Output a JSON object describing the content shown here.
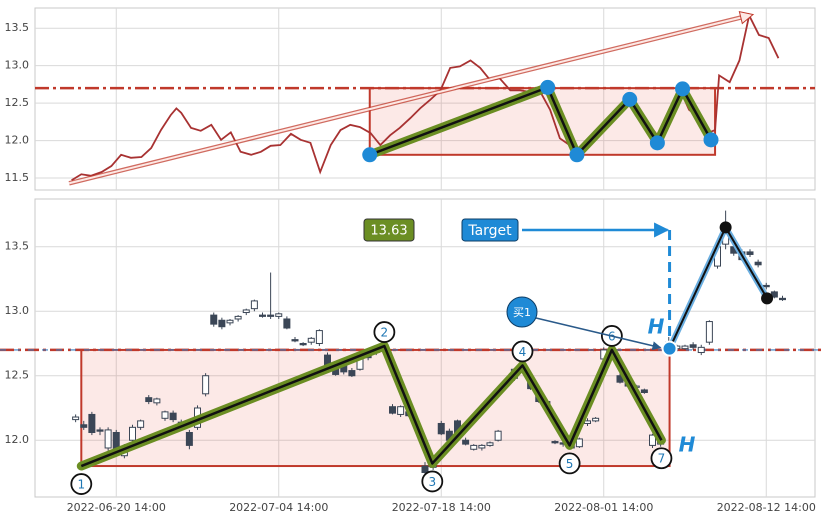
{
  "chart_data": [
    {
      "type": "line",
      "x": [
        4.5,
        5.7,
        6.9,
        8.2,
        9.4,
        10.6,
        11.8,
        13.1,
        14.3,
        15.5,
        16.7,
        17.4,
        18.0,
        19.2,
        20.4,
        21.7,
        22.9,
        24.1,
        25.3,
        26.6,
        27.8,
        29.0,
        30.2,
        31.5,
        32.7,
        33.9,
        35.1,
        36.4,
        37.6,
        38.8,
        40.0,
        41.3,
        42.5,
        43.7,
        44.9,
        46.2,
        47.4,
        48.6,
        49.9,
        51.1,
        52.3,
        53.6,
        54.8,
        56.0,
        57.2,
        58.5,
        59.7,
        60.9,
        62.1,
        63.4,
        64.6,
        65.8,
        67.1,
        68.3,
        69.5,
        70.7,
        72.0,
        73.2,
        74.4,
        75.6,
        76.9,
        78.1,
        79.3,
        80.5,
        81.8,
        83.0,
        83.7,
        84.2,
        85.5,
        86.7,
        87.9,
        89.1,
        90.3,
        91.5
      ],
      "values": [
        11.47,
        11.55,
        11.53,
        11.58,
        11.66,
        11.81,
        11.77,
        11.78,
        11.9,
        12.14,
        12.34,
        12.43,
        12.37,
        12.17,
        12.13,
        12.21,
        12.01,
        12.11,
        11.85,
        11.81,
        11.85,
        11.93,
        11.94,
        12.09,
        12.01,
        11.97,
        11.58,
        11.94,
        12.14,
        12.21,
        12.18,
        12.1,
        11.94,
        12.07,
        12.17,
        12.3,
        12.43,
        12.54,
        12.67,
        12.97,
        12.99,
        13.07,
        12.97,
        12.81,
        12.83,
        12.67,
        12.67,
        12.65,
        12.67,
        12.41,
        12.03,
        11.94,
        11.87,
        12.03,
        12.07,
        12.21,
        12.41,
        12.54,
        12.41,
        12.21,
        12.03,
        12.34,
        12.7,
        12.41,
        12.3,
        12.11,
        12.14,
        12.87,
        12.78,
        13.07,
        13.67,
        13.41,
        13.37,
        13.1
      ],
      "color": "#a83232",
      "xlim": [
        0,
        96
      ],
      "ylim": [
        11.34,
        13.77
      ],
      "yticks": [
        11.5,
        {
          "value": 12,
          "label": "12.0"
        },
        12.5,
        {
          "value": 13,
          "label": "13.0"
        },
        13.5
      ],
      "grid": true,
      "pattern": {
        "x": [
          41.2,
          63.1,
          66.7,
          73.2,
          76.6,
          79.7,
          83.2
        ],
        "y": [
          11.81,
          12.71,
          11.81,
          12.55,
          11.97,
          12.69,
          12.01
        ]
      },
      "box": {
        "x": [
          41.2,
          83.7
        ],
        "y": [
          11.81,
          12.7
        ]
      },
      "level": 12.7,
      "trend": {
        "x": [
          4.2,
          87.9
        ],
        "y": [
          11.43,
          13.67
        ]
      }
    },
    {
      "type": "candlestick",
      "x": [
        5,
        6,
        7,
        8,
        9,
        10,
        11,
        12,
        13,
        14,
        15,
        16,
        17,
        18,
        19,
        20,
        21,
        22,
        23,
        24,
        25,
        26,
        27,
        28,
        29,
        30,
        31,
        32,
        33,
        34,
        35,
        36,
        37,
        38,
        39,
        40,
        41,
        42,
        43,
        44,
        45,
        46,
        48,
        49,
        50,
        51,
        52,
        53,
        54,
        55,
        56,
        57,
        59,
        60,
        61,
        62,
        63,
        64,
        65,
        66,
        67,
        68,
        69,
        70,
        71,
        72,
        73,
        74,
        75,
        76,
        77,
        78,
        79,
        80,
        81,
        82,
        83,
        84,
        85,
        86,
        87,
        88,
        89,
        90,
        91,
        92
      ],
      "open": [
        12.16,
        12.12,
        12.2,
        12.08,
        11.94,
        12.06,
        11.88,
        12.0,
        12.1,
        12.33,
        12.29,
        12.17,
        12.21,
        12.14,
        12.06,
        12.1,
        12.36,
        12.97,
        12.93,
        12.91,
        12.94,
        12.99,
        13.02,
        12.97,
        12.97,
        12.96,
        12.94,
        12.78,
        12.75,
        12.76,
        12.75,
        12.66,
        12.58,
        12.6,
        12.54,
        12.55,
        12.66,
        12.68,
        12.7,
        12.26,
        12.2,
        12.22,
        11.8,
        11.79,
        12.13,
        12.07,
        12.15,
        12.0,
        11.93,
        11.94,
        11.96,
        12.0,
        12.48,
        12.58,
        12.46,
        12.36,
        12.3,
        11.99,
        11.98,
        11.97,
        11.95,
        12.13,
        12.15,
        12.63,
        12.7,
        12.5,
        12.48,
        12.41,
        12.39,
        11.96,
        11.97,
        12.72,
        12.71,
        12.71,
        12.74,
        12.68,
        12.76,
        13.35,
        13.52,
        13.5,
        13.46,
        13.46,
        13.38,
        13.2,
        13.15,
        13.1
      ],
      "high": [
        12.2,
        12.15,
        12.22,
        12.1,
        12.1,
        12.08,
        11.97,
        12.12,
        12.16,
        12.35,
        12.33,
        12.23,
        12.23,
        12.16,
        12.08,
        12.27,
        12.52,
        12.99,
        12.95,
        12.94,
        12.97,
        13.02,
        13.09,
        12.99,
        13.3,
        12.99,
        12.96,
        12.8,
        12.76,
        12.8,
        12.86,
        12.68,
        12.6,
        12.62,
        12.56,
        12.66,
        12.68,
        12.72,
        12.74,
        12.28,
        12.27,
        12.24,
        11.83,
        11.82,
        12.15,
        12.09,
        12.16,
        12.02,
        11.97,
        11.97,
        11.99,
        12.08,
        12.56,
        12.62,
        12.48,
        12.38,
        12.32,
        12.0,
        12.0,
        11.99,
        12.02,
        12.17,
        12.18,
        12.72,
        12.72,
        12.52,
        12.5,
        12.43,
        12.4,
        12.05,
        12.02,
        12.8,
        12.74,
        12.74,
        12.76,
        12.74,
        12.93,
        13.52,
        13.78,
        13.52,
        13.48,
        13.48,
        13.4,
        13.22,
        13.16,
        13.12
      ],
      "low": [
        12.14,
        12.08,
        12.04,
        12.04,
        11.92,
        11.9,
        11.86,
        11.98,
        12.08,
        12.28,
        12.27,
        12.15,
        12.14,
        12.1,
        11.93,
        12.08,
        12.34,
        12.88,
        12.86,
        12.89,
        12.92,
        12.97,
        13.0,
        12.95,
        12.94,
        12.94,
        12.86,
        12.76,
        12.73,
        12.74,
        12.73,
        12.54,
        12.5,
        12.51,
        12.49,
        12.54,
        12.62,
        12.66,
        12.68,
        12.2,
        12.18,
        12.18,
        11.74,
        11.77,
        12.04,
        11.99,
        12.04,
        11.96,
        11.92,
        11.92,
        11.95,
        11.99,
        12.46,
        12.55,
        12.39,
        12.29,
        12.24,
        11.97,
        11.95,
        11.93,
        11.94,
        12.11,
        12.14,
        12.61,
        12.64,
        12.44,
        12.41,
        12.39,
        12.36,
        11.94,
        11.95,
        12.68,
        12.69,
        12.7,
        12.7,
        12.66,
        12.74,
        13.33,
        13.48,
        13.43,
        13.39,
        13.42,
        13.34,
        13.17,
        13.1,
        13.08
      ],
      "close": [
        12.18,
        12.1,
        12.06,
        12.07,
        12.08,
        11.92,
        11.94,
        12.1,
        12.15,
        12.3,
        12.32,
        12.22,
        12.16,
        12.12,
        11.96,
        12.25,
        12.5,
        12.9,
        12.88,
        12.93,
        12.96,
        13.01,
        13.08,
        12.96,
        12.96,
        12.98,
        12.87,
        12.77,
        12.74,
        12.79,
        12.85,
        12.56,
        12.51,
        12.53,
        12.5,
        12.65,
        12.64,
        12.71,
        12.73,
        12.21,
        12.26,
        12.19,
        11.75,
        11.81,
        12.05,
        12.0,
        12.05,
        11.97,
        11.96,
        11.96,
        11.98,
        12.07,
        12.55,
        12.6,
        12.4,
        12.3,
        12.25,
        11.98,
        11.97,
        11.94,
        12.01,
        12.15,
        12.17,
        12.7,
        12.65,
        12.45,
        12.42,
        12.42,
        12.37,
        12.04,
        12.0,
        12.76,
        12.73,
        12.73,
        12.72,
        12.72,
        12.92,
        13.5,
        13.68,
        13.45,
        13.4,
        13.44,
        13.36,
        13.19,
        13.11,
        13.09
      ],
      "xlim": [
        0,
        96
      ],
      "ylim": [
        11.56,
        13.87
      ],
      "xticks": [
        {
          "value": 10,
          "label": "2022-06-20 14:00"
        },
        {
          "value": 30,
          "label": "2022-07-04 14:00"
        },
        {
          "value": 50,
          "label": "2022-07-18 14:00"
        },
        {
          "value": 70,
          "label": "2022-08-01 14:00"
        },
        {
          "value": 90,
          "label": "2022-08-12 14:00"
        }
      ],
      "yticks": [
        {
          "value": 12,
          "label": "12.0"
        },
        12.5,
        {
          "value": 13,
          "label": "13.0"
        },
        13.5
      ],
      "grid": true,
      "pattern": {
        "labels": [
          "1",
          "2",
          "3",
          "4",
          "5",
          "6",
          "7"
        ],
        "x": [
          5.7,
          43,
          48.9,
          60,
          65.8,
          71,
          77.1
        ],
        "y": [
          11.8,
          12.73,
          11.82,
          12.58,
          11.96,
          12.7,
          12.0
        ]
      },
      "box": {
        "x": [
          5.7,
          78.1
        ],
        "y": [
          11.8,
          12.7
        ]
      },
      "level": 12.7,
      "target": {
        "label": "Target",
        "value": 13.63
      },
      "buy": {
        "label": "买1",
        "x": 78.1,
        "y": 12.71
      },
      "trade": {
        "x": [
          78.1,
          85,
          90.1
        ],
        "y": [
          12.71,
          13.65,
          13.1
        ]
      },
      "annotations": [
        "H",
        "H"
      ]
    }
  ]
}
